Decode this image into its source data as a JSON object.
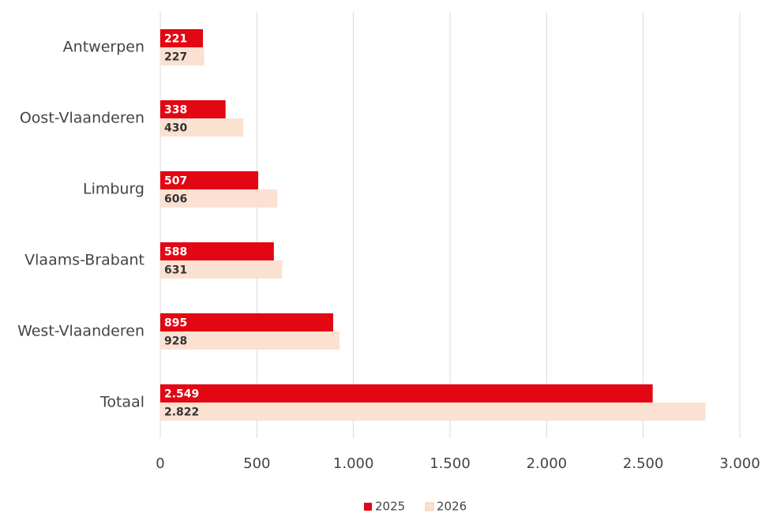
{
  "chart_data": {
    "type": "hbar",
    "categories": [
      "Antwerpen",
      "Oost-Vlaanderen",
      "Limburg",
      "Vlaams-Brabant",
      "West-Vlaanderen",
      "Totaal"
    ],
    "series": [
      {
        "name": "2025",
        "color": "#e30613",
        "values": [
          221,
          338,
          507,
          588,
          895,
          2549
        ],
        "value_labels": [
          "221",
          "338",
          "507",
          "588",
          "895",
          "2.549"
        ]
      },
      {
        "name": "2026",
        "color": "#fbe1d2",
        "values": [
          227,
          430,
          606,
          631,
          928,
          2822
        ],
        "value_labels": [
          "227",
          "430",
          "606",
          "631",
          "928",
          "2.822"
        ]
      }
    ],
    "xlim": [
      0,
      3000
    ],
    "xticks": [
      0,
      500,
      {
        "value": 1000,
        "label": "1.000"
      },
      {
        "value": 1500,
        "label": "1.500"
      },
      {
        "value": 2000,
        "label": "2.000"
      },
      {
        "value": 2500,
        "label": "2.500"
      },
      {
        "value": 3000,
        "label": "3.000"
      }
    ],
    "grid": true,
    "legend": "bottom"
  }
}
